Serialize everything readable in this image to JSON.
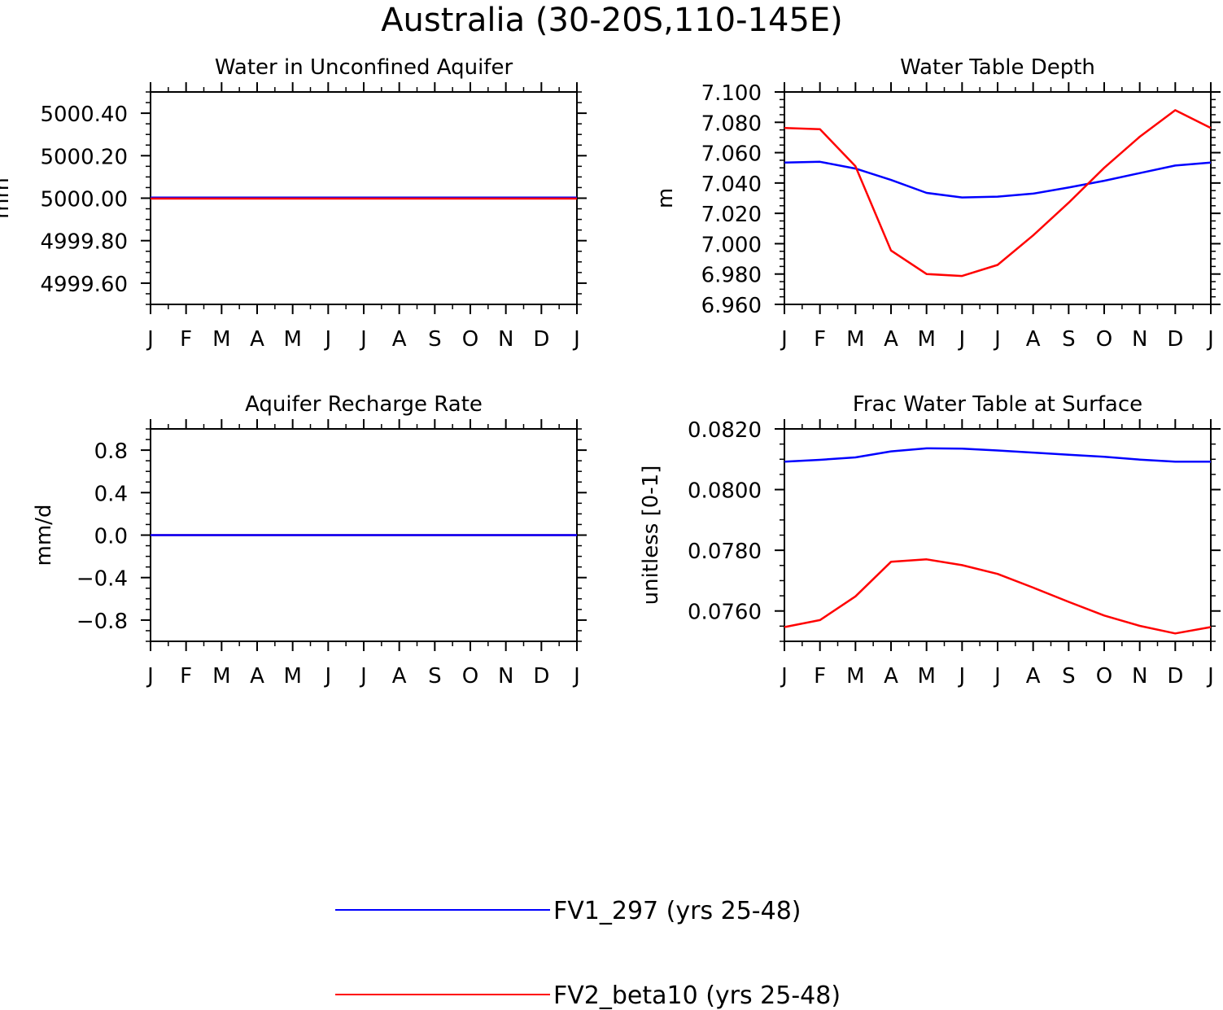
{
  "figure": {
    "title": "Australia (30-20S,110-145E)"
  },
  "legend": {
    "position": "bottom-center",
    "entries": [
      {
        "name": "FV1_297 (yrs 25-48)",
        "color": "#0000ff"
      },
      {
        "name": "FV2_beta10 (yrs 25-48)",
        "color": "#ff0000"
      }
    ]
  },
  "chart_data": [
    {
      "type": "line",
      "title": "Water in Unconfined Aquifer",
      "xlabel": "",
      "ylabel": "mm",
      "categories": [
        "J",
        "F",
        "M",
        "A",
        "M",
        "J",
        "J",
        "A",
        "S",
        "O",
        "N",
        "D",
        "J"
      ],
      "ylim": [
        4999.5,
        5000.5
      ],
      "yticks": [
        {
          "value": 4999.6,
          "label": "4999.60"
        },
        {
          "value": 4999.8,
          "label": "4999.80"
        },
        {
          "value": 5000.0,
          "label": "5000.00"
        },
        {
          "value": 5000.2,
          "label": "5000.20"
        },
        {
          "value": 5000.4,
          "label": "5000.40"
        }
      ],
      "yminor_step": 0.05,
      "series": [
        {
          "name": "FV1_297 (yrs 25-48)",
          "color": "#0000ff",
          "values": [
            5000.003,
            5000.003,
            5000.003,
            5000.003,
            5000.003,
            5000.003,
            5000.003,
            5000.003,
            5000.003,
            5000.003,
            5000.003,
            5000.003,
            5000.003
          ]
        },
        {
          "name": "FV2_beta10 (yrs 25-48)",
          "color": "#ff0000",
          "values": [
            4999.998,
            4999.998,
            4999.998,
            4999.998,
            4999.998,
            4999.998,
            4999.998,
            4999.998,
            4999.998,
            4999.998,
            4999.998,
            4999.998,
            4999.998
          ]
        }
      ]
    },
    {
      "type": "line",
      "title": "Water Table Depth",
      "xlabel": "",
      "ylabel": "m",
      "categories": [
        "J",
        "F",
        "M",
        "A",
        "M",
        "J",
        "J",
        "A",
        "S",
        "O",
        "N",
        "D",
        "J"
      ],
      "ylim": [
        6.96,
        7.1
      ],
      "yticks": [
        {
          "value": 6.96,
          "label": "6.960"
        },
        {
          "value": 6.98,
          "label": "6.980"
        },
        {
          "value": 7.0,
          "label": "7.000"
        },
        {
          "value": 7.02,
          "label": "7.020"
        },
        {
          "value": 7.04,
          "label": "7.040"
        },
        {
          "value": 7.06,
          "label": "7.060"
        },
        {
          "value": 7.08,
          "label": "7.080"
        },
        {
          "value": 7.1,
          "label": "7.100"
        }
      ],
      "yminor_step": 0.005,
      "series": [
        {
          "name": "FV1_297 (yrs 25-48)",
          "color": "#0000ff",
          "values": [
            7.0535,
            7.054,
            7.0495,
            7.042,
            7.0335,
            7.0305,
            7.031,
            7.033,
            7.037,
            7.0415,
            7.0465,
            7.0515,
            7.0535
          ]
        },
        {
          "name": "FV2_beta10 (yrs 25-48)",
          "color": "#ff0000",
          "values": [
            7.0763,
            7.0755,
            7.051,
            6.9955,
            6.98,
            6.9787,
            6.986,
            7.0055,
            7.027,
            7.05,
            7.0705,
            7.088,
            7.0763
          ]
        }
      ]
    },
    {
      "type": "line",
      "title": "Aquifer Recharge Rate",
      "xlabel": "",
      "ylabel": "mm/d",
      "categories": [
        "J",
        "F",
        "M",
        "A",
        "M",
        "J",
        "J",
        "A",
        "S",
        "O",
        "N",
        "D",
        "J"
      ],
      "ylim": [
        -1.0,
        1.0
      ],
      "yticks": [
        {
          "value": -0.8,
          "label": "−0.8"
        },
        {
          "value": -0.4,
          "label": "−0.4"
        },
        {
          "value": 0.0,
          "label": "0.0"
        },
        {
          "value": 0.4,
          "label": "0.4"
        },
        {
          "value": 0.8,
          "label": "0.8"
        }
      ],
      "yminor_step": 0.1,
      "series": [
        {
          "name": "FV2_beta10 (yrs 25-48)",
          "color": "#ff0000",
          "values": [
            0,
            0,
            0,
            0,
            0,
            0,
            0,
            0,
            0,
            0,
            0,
            0,
            0
          ]
        },
        {
          "name": "FV1_297 (yrs 25-48)",
          "color": "#0000ff",
          "values": [
            0,
            0,
            0,
            0,
            0,
            0,
            0,
            0,
            0,
            0,
            0,
            0,
            0
          ]
        }
      ]
    },
    {
      "type": "line",
      "title": "Frac Water Table at Surface",
      "xlabel": "",
      "ylabel": "unitless [0-1]",
      "categories": [
        "J",
        "F",
        "M",
        "A",
        "M",
        "J",
        "J",
        "A",
        "S",
        "O",
        "N",
        "D",
        "J"
      ],
      "ylim": [
        0.075,
        0.082
      ],
      "yticks": [
        {
          "value": 0.076,
          "label": "0.0760"
        },
        {
          "value": 0.078,
          "label": "0.0780"
        },
        {
          "value": 0.08,
          "label": "0.0800"
        },
        {
          "value": 0.082,
          "label": "0.0820"
        }
      ],
      "yminor_step": 0.0005,
      "series": [
        {
          "name": "FV1_297 (yrs 25-48)",
          "color": "#0000ff",
          "values": [
            0.08092,
            0.08098,
            0.08106,
            0.08126,
            0.08136,
            0.08135,
            0.08129,
            0.08122,
            0.08115,
            0.08108,
            0.08099,
            0.08092,
            0.08092
          ]
        },
        {
          "name": "FV2_beta10 (yrs 25-48)",
          "color": "#ff0000",
          "values": [
            0.07547,
            0.0757,
            0.07648,
            0.07762,
            0.0777,
            0.07751,
            0.07722,
            0.07677,
            0.0763,
            0.07585,
            0.07551,
            0.07526,
            0.07547
          ]
        }
      ]
    }
  ]
}
